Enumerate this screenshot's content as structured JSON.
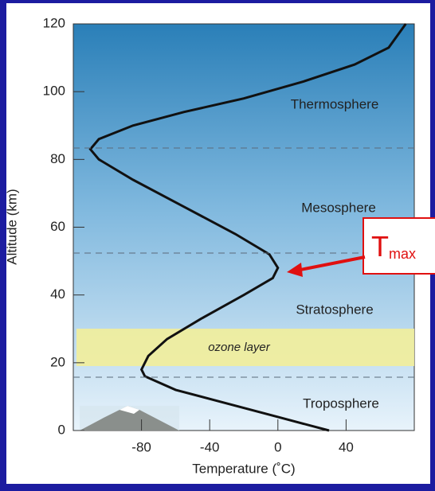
{
  "chart_data": {
    "type": "line",
    "x_label": "Temperature (˚C)",
    "y_label": "Altitude (km)",
    "series": [
      {
        "color": "#111111",
        "x": [
          30,
          0,
          -30,
          -60,
          -78,
          -80,
          -76,
          -65,
          -45,
          -20,
          -3,
          0,
          -5,
          -25,
          -55,
          -85,
          -105,
          -110,
          -105,
          -85,
          -55,
          -20,
          15,
          45,
          65,
          75
        ],
        "values": [
          0,
          4,
          8,
          12,
          16,
          18,
          22,
          27,
          33,
          40,
          45,
          48,
          52,
          58,
          66,
          74,
          80,
          83,
          86,
          90,
          94,
          98,
          103,
          108,
          113,
          120
        ]
      }
    ],
    "xlim": [
      -120,
      80
    ],
    "xticks": [
      -80,
      -40,
      0,
      40
    ],
    "ylim": [
      0,
      120
    ],
    "yticks": [
      0,
      20,
      40,
      60,
      80,
      100,
      120
    ],
    "layers": [
      "Thermosphere",
      "Mesosphere",
      "Stratosphere",
      "Troposphere"
    ],
    "ozone_label": "ozone layer",
    "annotation": {
      "main": "T",
      "sub": "max"
    }
  }
}
